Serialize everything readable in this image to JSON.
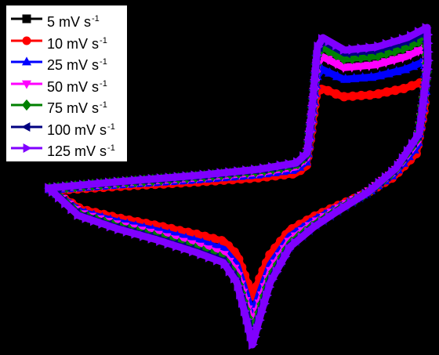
{
  "chart_data": {
    "type": "line",
    "title": "",
    "xlabel": "",
    "ylabel": "",
    "legend_position": "top-left",
    "series": [
      {
        "name": "5 mV s",
        "unit_sup": "-1",
        "color": "#000000",
        "marker": "square",
        "scale": 0.28,
        "y_scale": 0.55
      },
      {
        "name": "10 mV s",
        "unit_sup": "-1",
        "color": "#ff0000",
        "marker": "circle",
        "scale": 0.45,
        "y_scale": 0.68
      },
      {
        "name": "25 mV s",
        "unit_sup": "-1",
        "color": "#0000ff",
        "marker": "triangle-up",
        "scale": 0.6,
        "y_scale": 0.8
      },
      {
        "name": "50 mV s",
        "unit_sup": "-1",
        "color": "#ff00ff",
        "marker": "triangle-down",
        "scale": 0.72,
        "y_scale": 0.88
      },
      {
        "name": "75 mV s",
        "unit_sup": "-1",
        "color": "#008000",
        "marker": "diamond",
        "scale": 0.83,
        "y_scale": 0.94
      },
      {
        "name": "100 mV s",
        "unit_sup": "-1",
        "color": "#000080",
        "marker": "triangle-left",
        "scale": 0.92,
        "y_scale": 0.98
      },
      {
        "name": "125 mV s",
        "unit_sup": "-1",
        "color": "#8000ff",
        "marker": "triangle-right",
        "scale": 1.0,
        "y_scale": 1.0
      }
    ]
  }
}
